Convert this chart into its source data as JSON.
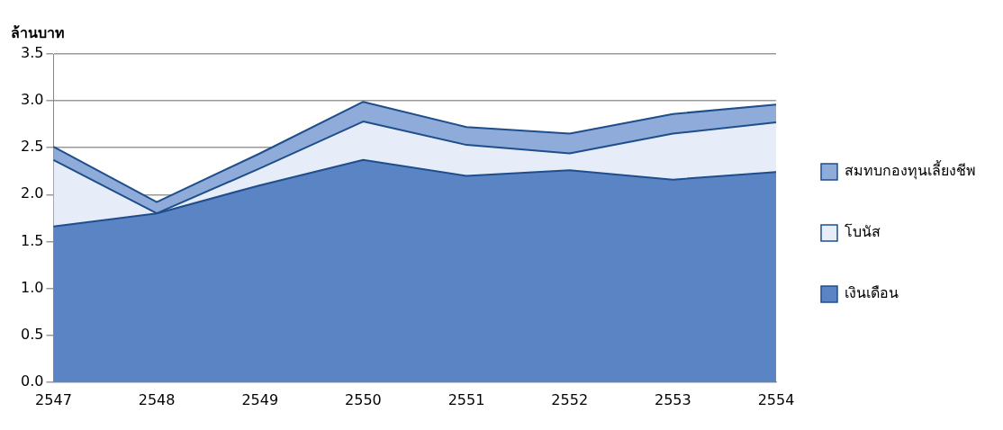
{
  "chart_data": {
    "type": "area",
    "ylabel": "ล้านบาท",
    "stacked": true,
    "categories": [
      "2547",
      "2548",
      "2549",
      "2550",
      "2551",
      "2552",
      "2553",
      "2554"
    ],
    "series": [
      {
        "name": "เงินเดือน",
        "color": "#5b84c4",
        "values": [
          1.66,
          1.8,
          2.1,
          2.37,
          2.2,
          2.26,
          2.16,
          2.24
        ]
      },
      {
        "name": "โบนัส",
        "color": "#e6edf8",
        "values": [
          0.71,
          0.0,
          0.18,
          0.41,
          0.33,
          0.18,
          0.49,
          0.53
        ]
      },
      {
        "name": "สมทบกองทุนเลี้ยงชีพ",
        "color": "#8eabd9",
        "values": [
          0.14,
          0.12,
          0.16,
          0.21,
          0.19,
          0.21,
          0.21,
          0.19
        ]
      }
    ],
    "ylim": [
      0,
      3.5
    ],
    "yticks": [
      {
        "value": 0,
        "label": "0.0"
      },
      0.5,
      {
        "value": 1,
        "label": "1.0"
      },
      1.5,
      {
        "value": 2,
        "label": "2.0"
      },
      2.5,
      {
        "value": 3,
        "label": "3.0"
      },
      3.5
    ],
    "grid": "y",
    "legend": "right"
  }
}
